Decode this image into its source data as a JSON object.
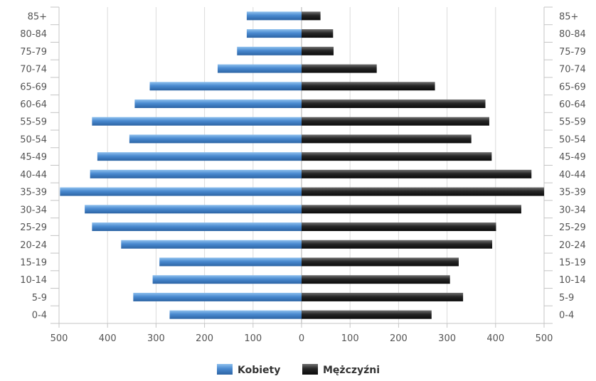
{
  "chart_data": {
    "type": "bar",
    "orientation": "horizontal",
    "layout": "population-pyramid",
    "categories": [
      "0-4",
      "5-9",
      "10-14",
      "15-19",
      "20-24",
      "25-29",
      "30-34",
      "35-39",
      "40-44",
      "45-49",
      "50-54",
      "55-59",
      "60-64",
      "65-69",
      "70-74",
      "75-79",
      "80-84",
      "85+"
    ],
    "series": [
      {
        "name": "Kobiety",
        "side": "left",
        "color": "#3f7fc0",
        "values": [
          272,
          347,
          307,
          293,
          372,
          432,
          447,
          498,
          436,
          421,
          355,
          432,
          344,
          313,
          173,
          133,
          113,
          113
        ]
      },
      {
        "name": "Mężczyźni",
        "side": "right",
        "color": "#222222",
        "values": [
          268,
          333,
          306,
          324,
          393,
          401,
          453,
          500,
          474,
          392,
          350,
          387,
          379,
          275,
          155,
          66,
          65,
          39
        ]
      }
    ],
    "x_ticks": [
      "500",
      "400",
      "300",
      "200",
      "100",
      "0",
      "100",
      "200",
      "300",
      "400",
      "500"
    ],
    "xlim": [
      -500,
      500
    ],
    "grid": "vertical",
    "legend": "bottom-center"
  }
}
